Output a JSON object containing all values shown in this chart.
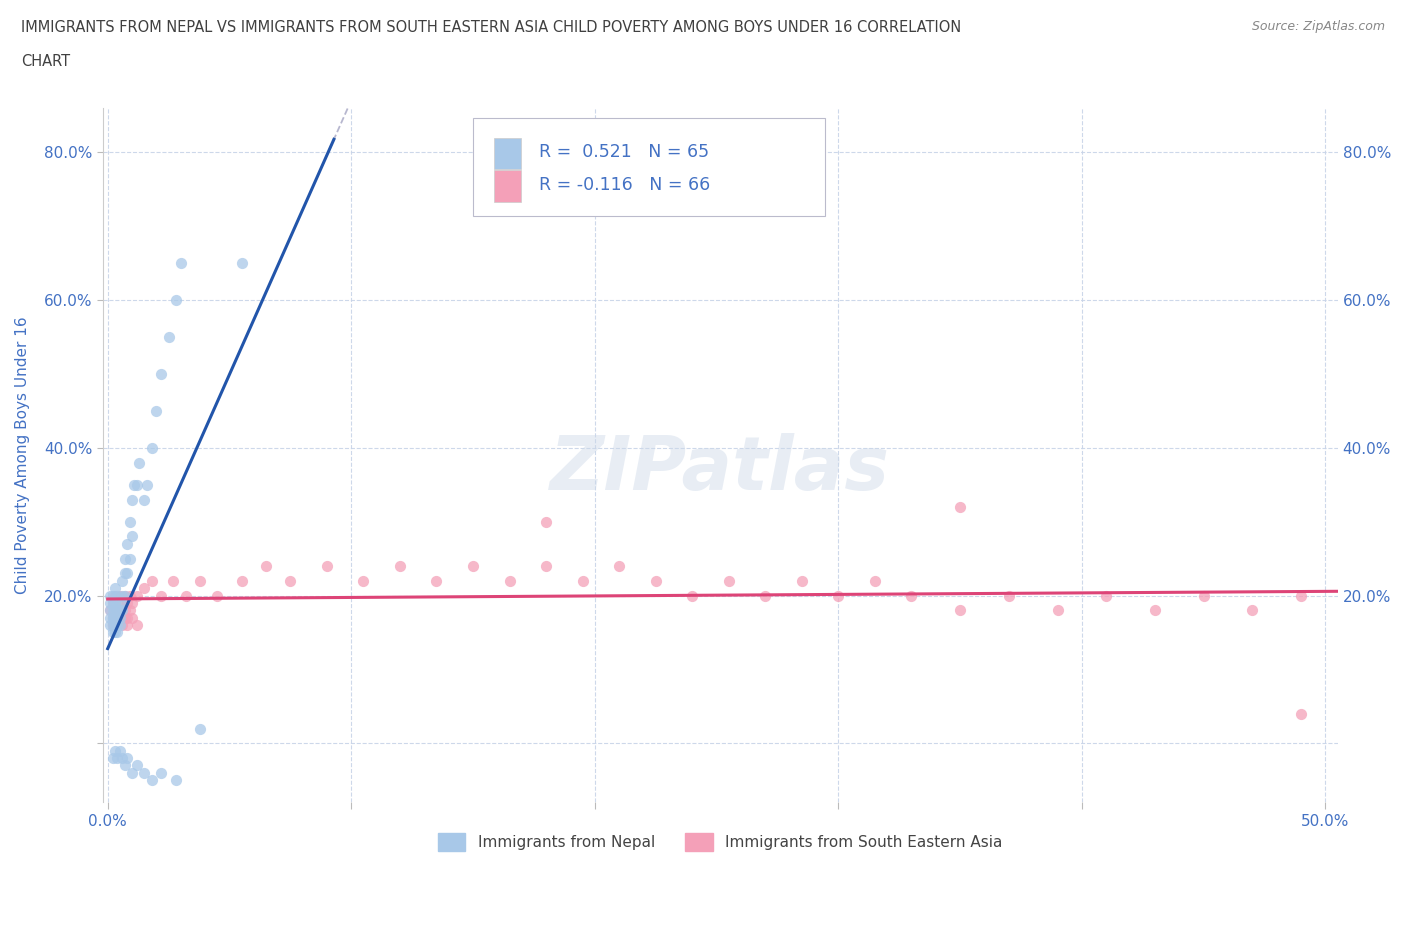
{
  "title_line1": "IMMIGRANTS FROM NEPAL VS IMMIGRANTS FROM SOUTH EASTERN ASIA CHILD POVERTY AMONG BOYS UNDER 16 CORRELATION",
  "title_line2": "CHART",
  "source": "Source: ZipAtlas.com",
  "ylabel": "Child Poverty Among Boys Under 16",
  "xlim": [
    -0.002,
    0.505
  ],
  "ylim": [
    -0.08,
    0.86
  ],
  "xticks": [
    0.0,
    0.1,
    0.2,
    0.3,
    0.4,
    0.5
  ],
  "xticklabels": [
    "0.0%",
    "",
    "",
    "",
    "",
    "50.0%"
  ],
  "yticks": [
    0.0,
    0.2,
    0.4,
    0.6,
    0.8
  ],
  "yticklabels": [
    "",
    "20.0%",
    "40.0%",
    "60.0%",
    "80.0%"
  ],
  "nepal_R": "0.521",
  "nepal_N": 65,
  "sea_R": "-0.116",
  "sea_N": 66,
  "nepal_color": "#a8c8e8",
  "sea_color": "#f4a0b8",
  "nepal_line_color": "#2255aa",
  "sea_line_color": "#dd4477",
  "legend_label_nepal": "Immigrants from Nepal",
  "legend_label_sea": "Immigrants from South Eastern Asia",
  "watermark": "ZIPatlas",
  "background_color": "#ffffff",
  "grid_color": "#c8d4e8",
  "title_color": "#404040",
  "axis_label_color": "#4472c4",
  "tick_color": "#4472c4",
  "nepal_x_data": [
    0.001,
    0.001,
    0.001,
    0.001,
    0.001,
    0.002,
    0.002,
    0.002,
    0.002,
    0.002,
    0.002,
    0.002,
    0.003,
    0.003,
    0.003,
    0.003,
    0.003,
    0.003,
    0.004,
    0.004,
    0.004,
    0.004,
    0.004,
    0.005,
    0.005,
    0.005,
    0.005,
    0.006,
    0.006,
    0.006,
    0.007,
    0.007,
    0.007,
    0.008,
    0.008,
    0.009,
    0.009,
    0.01,
    0.01,
    0.011,
    0.012,
    0.013,
    0.015,
    0.016,
    0.018,
    0.02,
    0.022,
    0.025,
    0.028,
    0.03,
    0.002,
    0.003,
    0.004,
    0.005,
    0.006,
    0.007,
    0.008,
    0.01,
    0.012,
    0.015,
    0.018,
    0.022,
    0.028,
    0.038,
    0.055
  ],
  "nepal_y_data": [
    0.18,
    0.16,
    0.19,
    0.17,
    0.2,
    0.17,
    0.18,
    0.16,
    0.19,
    0.15,
    0.17,
    0.2,
    0.16,
    0.18,
    0.17,
    0.19,
    0.15,
    0.21,
    0.16,
    0.18,
    0.17,
    0.2,
    0.15,
    0.17,
    0.19,
    0.16,
    0.18,
    0.18,
    0.2,
    0.22,
    0.2,
    0.23,
    0.25,
    0.23,
    0.27,
    0.25,
    0.3,
    0.28,
    0.33,
    0.35,
    0.35,
    0.38,
    0.33,
    0.35,
    0.4,
    0.45,
    0.5,
    0.55,
    0.6,
    0.65,
    -0.02,
    -0.01,
    -0.02,
    -0.01,
    -0.02,
    -0.03,
    -0.02,
    -0.04,
    -0.03,
    -0.04,
    -0.05,
    -0.04,
    -0.05,
    0.02,
    0.65
  ],
  "sea_x_data": [
    0.001,
    0.002,
    0.002,
    0.003,
    0.003,
    0.004,
    0.004,
    0.005,
    0.005,
    0.006,
    0.006,
    0.007,
    0.007,
    0.008,
    0.008,
    0.009,
    0.009,
    0.01,
    0.012,
    0.015,
    0.018,
    0.022,
    0.027,
    0.032,
    0.038,
    0.045,
    0.055,
    0.065,
    0.075,
    0.09,
    0.105,
    0.12,
    0.135,
    0.15,
    0.165,
    0.18,
    0.195,
    0.21,
    0.225,
    0.24,
    0.255,
    0.27,
    0.285,
    0.3,
    0.315,
    0.33,
    0.35,
    0.37,
    0.39,
    0.41,
    0.43,
    0.45,
    0.47,
    0.49,
    0.002,
    0.003,
    0.004,
    0.005,
    0.006,
    0.007,
    0.008,
    0.01,
    0.012,
    0.18,
    0.35,
    0.49
  ],
  "sea_y_data": [
    0.18,
    0.19,
    0.17,
    0.2,
    0.17,
    0.18,
    0.16,
    0.2,
    0.18,
    0.19,
    0.17,
    0.2,
    0.18,
    0.19,
    0.17,
    0.2,
    0.18,
    0.19,
    0.2,
    0.21,
    0.22,
    0.2,
    0.22,
    0.2,
    0.22,
    0.2,
    0.22,
    0.24,
    0.22,
    0.24,
    0.22,
    0.24,
    0.22,
    0.24,
    0.22,
    0.24,
    0.22,
    0.24,
    0.22,
    0.2,
    0.22,
    0.2,
    0.22,
    0.2,
    0.22,
    0.2,
    0.18,
    0.2,
    0.18,
    0.2,
    0.18,
    0.2,
    0.18,
    0.2,
    0.16,
    0.17,
    0.16,
    0.17,
    0.16,
    0.17,
    0.16,
    0.17,
    0.16,
    0.3,
    0.32,
    0.04
  ]
}
